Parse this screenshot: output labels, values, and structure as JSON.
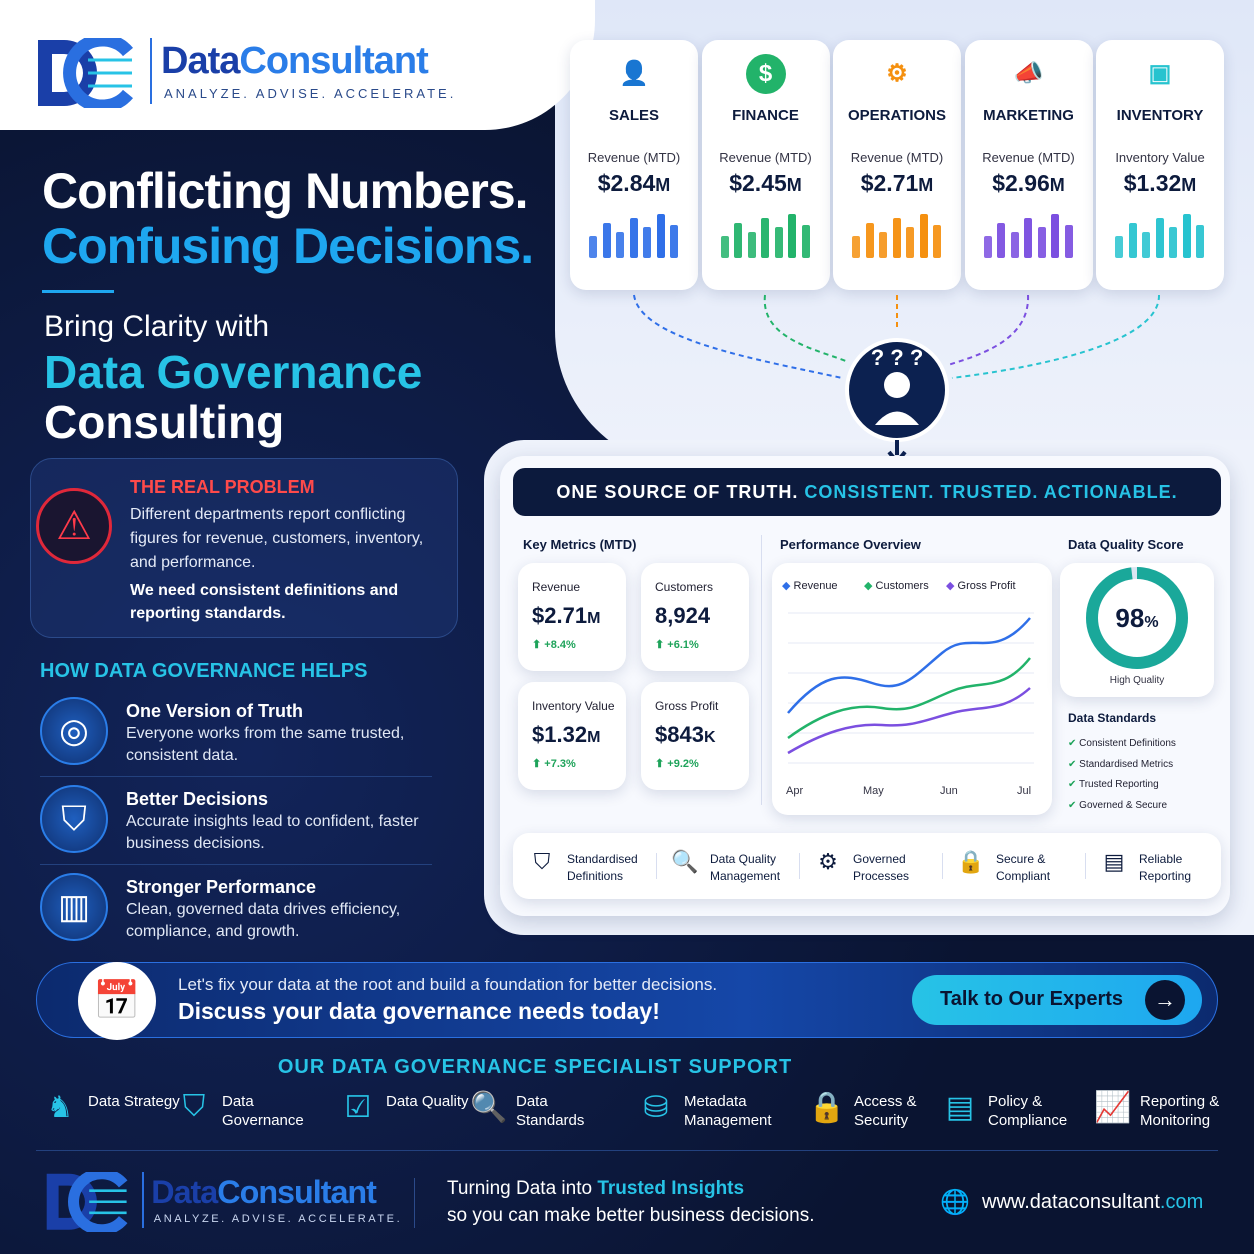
{
  "brand": {
    "name_1": "Data",
    "name_2": "Consultant",
    "tagline": "ANALYZE. ADVISE. ACCELERATE."
  },
  "hero": {
    "line_1": "Conflicting Numbers.",
    "line_2": "Confusing Decisions.",
    "sub_1": "Bring Clarity with",
    "sub_2": "Data Governance",
    "sub_3": "Consulting"
  },
  "problem": {
    "title": "THE REAL PROBLEM",
    "text": "Different departments report conflicting figures for revenue, customers, inventory, and performance.",
    "emphasis": "We need consistent definitions and reporting standards."
  },
  "helps": {
    "title": "HOW DATA GOVERNANCE HELPS",
    "items": [
      {
        "title": "One Version of Truth",
        "text": "Everyone works from the same trusted, consistent data."
      },
      {
        "title": "Better Decisions",
        "text": "Accurate insights lead to confident, faster business decisions."
      },
      {
        "title": "Stronger Performance",
        "text": "Clean, governed data drives efficiency, compliance, and growth."
      }
    ]
  },
  "departments": [
    {
      "name": "SALES",
      "metric": "Revenue (MTD)",
      "value": "$2.84",
      "unit": "M",
      "color": "#2f6fe8",
      "icon": "👤"
    },
    {
      "name": "FINANCE",
      "metric": "Revenue (MTD)",
      "value": "$2.45",
      "unit": "M",
      "color": "#22b36a",
      "icon": "$"
    },
    {
      "name": "OPERATIONS",
      "metric": "Revenue (MTD)",
      "value": "$2.71",
      "unit": "M",
      "color": "#f5900f",
      "icon": "⚙"
    },
    {
      "name": "MARKETING",
      "metric": "Revenue (MTD)",
      "value": "$2.96",
      "unit": "M",
      "color": "#7b4fe0",
      "icon": "📣"
    },
    {
      "name": "INVENTORY",
      "metric": "Inventory Value",
      "value": "$1.32",
      "unit": "M",
      "color": "#27c3cf",
      "icon": "▣"
    }
  ],
  "dashboard": {
    "banner_1": "ONE SOURCE OF TRUTH.",
    "banner_2": "CONSISTENT. TRUSTED. ACTIONABLE.",
    "key_metrics_title": "Key Metrics (MTD)",
    "metrics": [
      {
        "label": "Revenue",
        "value": "$2.71",
        "unit": "M",
        "change": "+8.4%"
      },
      {
        "label": "Customers",
        "value": "8,924",
        "unit": "",
        "change": "+6.1%"
      },
      {
        "label": "Inventory Value",
        "value": "$1.32",
        "unit": "M",
        "change": "+7.3%"
      },
      {
        "label": "Gross Profit",
        "value": "$843",
        "unit": "K",
        "change": "+9.2%"
      }
    ],
    "performance_title": "Performance Overview",
    "legend": [
      {
        "name": "Revenue",
        "color": "#2f6fe8"
      },
      {
        "name": "Customers",
        "color": "#22b36a"
      },
      {
        "name": "Gross Profit",
        "color": "#7b4fe0"
      }
    ],
    "months": [
      "Apr",
      "May",
      "Jun",
      "Jul"
    ],
    "quality_title": "Data Quality Score",
    "quality_score": {
      "value": 98,
      "label": "98"
    },
    "quality_unit": "%",
    "quality_caption": "High Quality",
    "standards_title": "Data Standards",
    "standards": [
      "Consistent Definitions",
      "Standardised Metrics",
      "Trusted Reporting",
      "Governed & Secure"
    ],
    "features": [
      "Standardised Definitions",
      "Data Quality Management",
      "Governed Processes",
      "Secure & Compliant",
      "Reliable Reporting"
    ]
  },
  "cta": {
    "line_1": "Let's fix your data at the root and build a foundation for better decisions.",
    "line_2": "Discuss your data governance needs today!",
    "button": "Talk to Our Experts"
  },
  "support": {
    "title": "OUR DATA GOVERNANCE SPECIALIST SUPPORT",
    "items": [
      "Data Strategy",
      "Data Governance",
      "Data Quality",
      "Data Standards",
      "Metadata Management",
      "Access & Security",
      "Policy & Compliance",
      "Reporting & Monitoring"
    ]
  },
  "footer": {
    "tagline_1": "Turning Data into",
    "tagline_2": "Trusted Insights",
    "tagline_3": "so you can make better business decisions.",
    "url_1": "www.dataconsultant",
    "url_2": ".com"
  }
}
